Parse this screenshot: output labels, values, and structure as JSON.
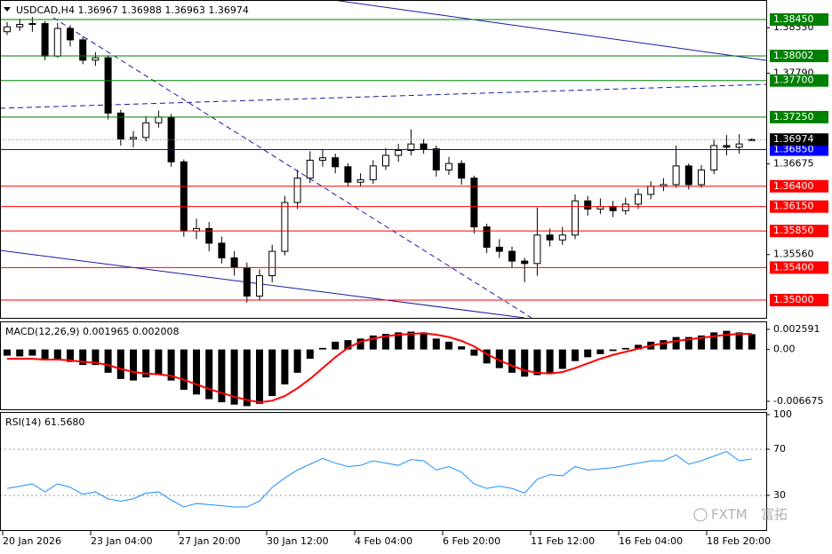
{
  "chart_data": [
    {
      "type": "candlestick",
      "title": "USDCAD,H4 1.36967 1.36988 1.36963 1.36974",
      "bull_color": "#ffffff",
      "bear_color": "#000000",
      "open": [
        1.383,
        1.3836,
        1.3839,
        1.384,
        1.38,
        1.3834,
        1.382,
        1.3795,
        1.3798,
        1.373,
        1.3698,
        1.37,
        1.3718,
        1.3725,
        1.367,
        1.3585,
        1.3588,
        1.357,
        1.3552,
        1.354,
        1.3505,
        1.353,
        1.356,
        1.362,
        1.365,
        1.3672,
        1.3675,
        1.3664,
        1.3645,
        1.3648,
        1.3665,
        1.3678,
        1.3684,
        1.3692,
        1.3686,
        1.366,
        1.3668,
        1.365,
        1.359,
        1.3565,
        1.356,
        1.3548,
        1.3545,
        1.358,
        1.3574,
        1.358,
        1.3622,
        1.3612,
        1.3615,
        1.361,
        1.3618,
        1.363,
        1.364,
        1.3642,
        1.3665,
        1.3642,
        1.366,
        1.369,
        1.3688,
        1.36967
      ],
      "high": [
        1.3842,
        1.3846,
        1.3848,
        1.3843,
        1.3841,
        1.3838,
        1.3824,
        1.3805,
        1.3801,
        1.3734,
        1.3708,
        1.3726,
        1.3733,
        1.3729,
        1.3673,
        1.36,
        1.3596,
        1.3578,
        1.356,
        1.3546,
        1.3538,
        1.3568,
        1.3628,
        1.366,
        1.3683,
        1.3686,
        1.368,
        1.3668,
        1.3656,
        1.3672,
        1.3687,
        1.3692,
        1.371,
        1.3698,
        1.369,
        1.3676,
        1.3672,
        1.3653,
        1.3594,
        1.3575,
        1.3566,
        1.3552,
        1.3614,
        1.3588,
        1.359,
        1.363,
        1.3628,
        1.3625,
        1.3622,
        1.3626,
        1.3637,
        1.3646,
        1.365,
        1.369,
        1.3668,
        1.3666,
        1.3697,
        1.3703,
        1.3704,
        1.36988
      ],
      "low": [
        1.3826,
        1.3831,
        1.383,
        1.3795,
        1.3798,
        1.3812,
        1.379,
        1.3788,
        1.3722,
        1.369,
        1.3688,
        1.3695,
        1.3712,
        1.3664,
        1.3578,
        1.3575,
        1.356,
        1.3545,
        1.353,
        1.3497,
        1.35,
        1.3522,
        1.3555,
        1.3612,
        1.3644,
        1.3664,
        1.3656,
        1.364,
        1.364,
        1.3643,
        1.366,
        1.367,
        1.3678,
        1.368,
        1.3652,
        1.3654,
        1.3642,
        1.3582,
        1.3558,
        1.3552,
        1.354,
        1.3522,
        1.353,
        1.3566,
        1.3568,
        1.3575,
        1.3604,
        1.3606,
        1.3602,
        1.3605,
        1.3612,
        1.3624,
        1.3634,
        1.3638,
        1.3636,
        1.3638,
        1.3655,
        1.3678,
        1.368,
        1.36963
      ],
      "close": [
        1.3836,
        1.3839,
        1.384,
        1.38,
        1.3834,
        1.382,
        1.3795,
        1.3798,
        1.373,
        1.3698,
        1.37,
        1.3718,
        1.3725,
        1.367,
        1.3585,
        1.3588,
        1.357,
        1.3552,
        1.354,
        1.3505,
        1.353,
        1.356,
        1.362,
        1.365,
        1.3672,
        1.3675,
        1.3664,
        1.3645,
        1.3648,
        1.3665,
        1.3678,
        1.3684,
        1.3692,
        1.3686,
        1.366,
        1.3668,
        1.365,
        1.359,
        1.3565,
        1.356,
        1.3548,
        1.3545,
        1.358,
        1.3574,
        1.358,
        1.3622,
        1.3612,
        1.3615,
        1.361,
        1.3618,
        1.363,
        1.364,
        1.3642,
        1.3665,
        1.3642,
        1.366,
        1.369,
        1.3688,
        1.3692,
        1.36974
      ],
      "ylim": [
        1.34782,
        1.3869
      ],
      "yticks": [
        {
          "value": 1.3835,
          "label": "1.38350"
        },
        {
          "value": 1.3779,
          "label": "1.37790"
        },
        {
          "value": 1.36675,
          "label": "1.36675"
        },
        {
          "value": 1.3556,
          "label": "1.35560"
        }
      ],
      "grid": false,
      "levels": [
        {
          "value": 1.3845,
          "label": "1.38450",
          "color": "#008000"
        },
        {
          "value": 1.38002,
          "label": "1.38002",
          "color": "#008000"
        },
        {
          "value": 1.377,
          "label": "1.37700",
          "color": "#008000"
        },
        {
          "value": 1.3725,
          "label": "1.37250",
          "color": "#008000"
        },
        {
          "value": 1.3685,
          "label": "1.36850",
          "color": "#0000ff"
        },
        {
          "value": 1.364,
          "label": "1.36400",
          "color": "#ff0000"
        },
        {
          "value": 1.3615,
          "label": "1.36150",
          "color": "#ff0000"
        },
        {
          "value": 1.3585,
          "label": "1.35850",
          "color": "#ff0000"
        },
        {
          "value": 1.354,
          "label": "1.35400",
          "color": "#ff0000"
        },
        {
          "value": 1.35,
          "label": "1.35000",
          "color": "#ff0000"
        }
      ],
      "time_labels": [
        "20 Jan 2026",
        "23 Jan 04:00",
        "27 Jan 20:00",
        "30 Jan 12:00",
        "4 Feb 04:00",
        "6 Feb 20:00",
        "11 Feb 12:00",
        "16 Feb 04:00",
        "18 Feb 20:00"
      ],
      "watermark": [
        "FXTM",
        "富拓"
      ]
    },
    {
      "type": "macd",
      "title": "MACD(12,26,9) 0.001965 0.002008",
      "color": "#000000",
      "signal_color": "#ff0000",
      "histogram": [
        -0.0008,
        -0.0009,
        -0.0008,
        -0.0014,
        -0.0013,
        -0.0016,
        -0.002,
        -0.002,
        -0.003,
        -0.0038,
        -0.004,
        -0.0036,
        -0.0033,
        -0.004,
        -0.0052,
        -0.0058,
        -0.0064,
        -0.0068,
        -0.0071,
        -0.0073,
        -0.007,
        -0.006,
        -0.0045,
        -0.003,
        -0.0012,
        0.0002,
        0.001,
        0.0012,
        0.0014,
        0.0018,
        0.002,
        0.0022,
        0.0023,
        0.0022,
        0.0014,
        0.001,
        0.0004,
        -0.0008,
        -0.0018,
        -0.0024,
        -0.003,
        -0.0035,
        -0.0033,
        -0.003,
        -0.0025,
        -0.0015,
        -0.001,
        -0.0006,
        -0.0002,
        0.0002,
        0.0006,
        0.001,
        0.0012,
        0.0016,
        0.0016,
        0.0018,
        0.0022,
        0.0024,
        0.0022,
        0.001965
      ],
      "signal": [
        -0.0012,
        -0.0012,
        -0.0012,
        -0.0013,
        -0.0013,
        -0.0014,
        -0.0016,
        -0.0017,
        -0.002,
        -0.0025,
        -0.0029,
        -0.0031,
        -0.0032,
        -0.0034,
        -0.0039,
        -0.0045,
        -0.0051,
        -0.0056,
        -0.0061,
        -0.0065,
        -0.0068,
        -0.0066,
        -0.006,
        -0.005,
        -0.0038,
        -0.0024,
        -0.001,
        0.0002,
        0.001,
        0.0014,
        0.0017,
        0.0019,
        0.002,
        0.0021,
        0.0019,
        0.0016,
        0.0011,
        0.0004,
        -0.0006,
        -0.0014,
        -0.0021,
        -0.0027,
        -0.003,
        -0.0031,
        -0.0029,
        -0.0024,
        -0.0018,
        -0.0012,
        -0.0007,
        -0.0003,
        0.0001,
        0.0005,
        0.0008,
        0.0011,
        0.0013,
        0.0015,
        0.0017,
        0.0019,
        0.002,
        0.002008
      ],
      "ylim": [
        -0.00782,
        0.003615
      ],
      "yticks": [
        0.002591,
        {
          "value": 0,
          "label": "0.00"
        },
        -0.006675
      ]
    },
    {
      "type": "line",
      "title": "RSI(14) 61.5680",
      "color": "#1e90ff",
      "values": [
        36,
        38,
        40,
        33,
        40,
        37,
        31,
        33,
        27,
        25,
        27,
        32,
        33,
        26,
        20,
        23,
        22,
        21,
        20,
        20,
        25,
        37,
        45,
        52,
        57,
        62,
        58,
        55,
        56,
        60,
        58,
        56,
        61,
        60,
        52,
        55,
        50,
        40,
        36,
        38,
        36,
        32,
        44,
        48,
        47,
        55,
        52,
        53,
        54,
        56,
        58,
        60,
        60,
        65,
        57,
        60,
        64,
        68,
        60,
        61.568
      ],
      "ylim": [
        -0.8,
        102.3
      ],
      "yticks": [
        100,
        70,
        30
      ],
      "levels": [
        70,
        30
      ]
    }
  ]
}
